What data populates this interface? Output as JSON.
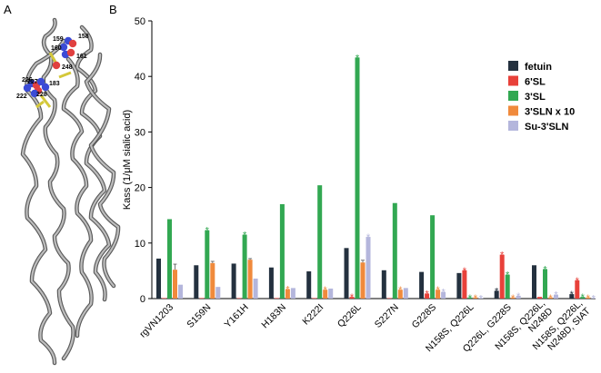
{
  "panels": {
    "a": {
      "label": "A",
      "residue_labels": [
        "159",
        "158",
        "160",
        "161",
        "248",
        "226",
        "227",
        "183",
        "228",
        "222"
      ]
    },
    "b": {
      "label": "B"
    }
  },
  "chart_data": {
    "type": "bar",
    "ylabel": "Kass (1/μM sialic acid)",
    "ylim": [
      0,
      50
    ],
    "yticks": [
      0,
      10,
      20,
      30,
      40,
      50
    ],
    "categories": [
      "rgVN1203",
      "S159N",
      "Y161H",
      "H183N",
      "K222I",
      "Q226L",
      "S227N",
      "G228S",
      "N158S, Q226L",
      "Q226L, G228S",
      "N158S, Q226L, N248D",
      "N158S, Q226L, N248D, SIAT"
    ],
    "category_lines": [
      [
        "rgVN1203"
      ],
      [
        "S159N"
      ],
      [
        "Y161H"
      ],
      [
        "H183N"
      ],
      [
        "K222I"
      ],
      [
        "Q226L"
      ],
      [
        "S227N"
      ],
      [
        "G228S"
      ],
      [
        "N158S, Q226L"
      ],
      [
        "Q226L, G228S"
      ],
      [
        "N158S, Q226L,",
        "N248D"
      ],
      [
        "N158S, Q226L,",
        "N248D, SIAT"
      ]
    ],
    "series": [
      {
        "name": "fetuin",
        "color": "#24313f",
        "values": [
          7.2,
          6.0,
          6.3,
          5.6,
          4.9,
          9.1,
          5.1,
          4.8,
          4.6,
          1.4,
          6.0,
          0.8
        ]
      },
      {
        "name": "6'SL",
        "color": "#e8413a",
        "values": [
          0.1,
          0.1,
          0.1,
          0.1,
          0.1,
          0.3,
          0.1,
          0.9,
          5.1,
          7.9,
          0.3,
          3.3
        ]
      },
      {
        "name": "3'SL",
        "color": "#32a852",
        "values": [
          14.3,
          12.3,
          11.5,
          17.0,
          20.4,
          43.4,
          17.2,
          15.0,
          0.2,
          4.3,
          5.3,
          0.3
        ]
      },
      {
        "name": "3'SLN x 10",
        "color": "#f08a3c",
        "values": [
          5.2,
          6.4,
          7.0,
          1.7,
          1.6,
          6.5,
          1.6,
          1.6,
          0.2,
          0.2,
          0.2,
          0.2
        ]
      },
      {
        "name": "Su-3'SLN",
        "color": "#b4b6dc",
        "values": [
          2.5,
          2.1,
          3.6,
          1.9,
          1.8,
          11.1,
          1.9,
          1.2,
          0.1,
          0.5,
          0.7,
          0.1
        ]
      }
    ],
    "error_bars": [
      [
        0,
        0,
        0,
        0,
        0,
        0,
        0,
        0,
        0,
        0,
        0,
        0
      ],
      [
        0,
        0,
        0,
        0,
        0,
        0,
        0,
        0,
        0,
        0,
        0,
        0
      ],
      [
        0,
        0,
        0,
        0,
        0,
        0,
        0,
        0,
        0,
        0,
        0,
        0
      ],
      [
        1.0,
        0.3,
        0.2,
        0,
        0,
        0.4,
        0,
        0,
        0,
        0,
        0,
        0
      ],
      [
        0,
        0,
        0,
        0,
        0,
        0,
        0,
        0,
        0,
        0,
        0,
        0
      ]
    ],
    "asterisks": [
      {
        "category": 1,
        "series": 2
      },
      {
        "category": 2,
        "series": 2
      },
      {
        "category": 3,
        "series": 3
      },
      {
        "category": 4,
        "series": 3
      },
      {
        "category": 5,
        "series": 1
      },
      {
        "category": 5,
        "series": 2
      },
      {
        "category": 5,
        "series": 4
      },
      {
        "category": 6,
        "series": 3
      },
      {
        "category": 7,
        "series": 1
      },
      {
        "category": 7,
        "series": 3
      },
      {
        "category": 7,
        "series": 4
      },
      {
        "category": 8,
        "series": 1
      },
      {
        "category": 8,
        "series": 2
      },
      {
        "category": 8,
        "series": 3
      },
      {
        "category": 8,
        "series": 4
      },
      {
        "category": 9,
        "series": 0
      },
      {
        "category": 9,
        "series": 1
      },
      {
        "category": 9,
        "series": 2
      },
      {
        "category": 9,
        "series": 3
      },
      {
        "category": 9,
        "series": 4
      },
      {
        "category": 10,
        "series": 2
      },
      {
        "category": 10,
        "series": 3
      },
      {
        "category": 10,
        "series": 4
      },
      {
        "category": 11,
        "series": 0
      },
      {
        "category": 11,
        "series": 1
      },
      {
        "category": 11,
        "series": 2
      },
      {
        "category": 11,
        "series": 3
      },
      {
        "category": 11,
        "series": 4
      }
    ],
    "legend_position": "right",
    "grid": false
  }
}
